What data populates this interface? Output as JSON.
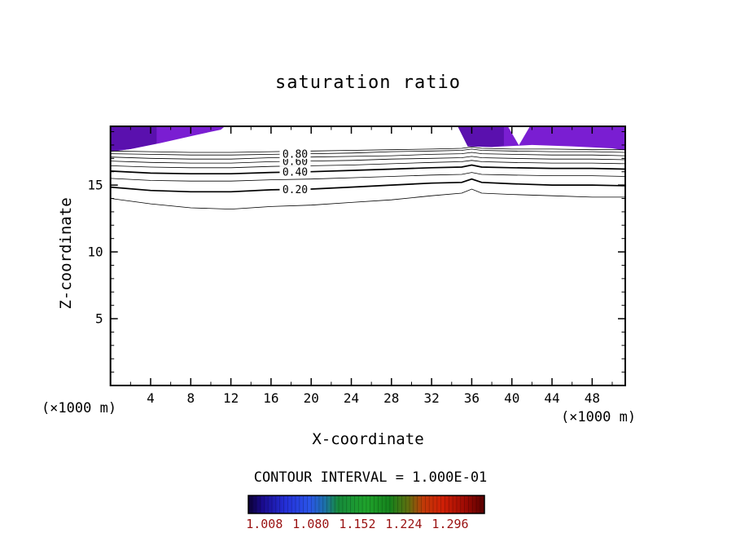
{
  "chart_data": {
    "type": "contour",
    "title": "saturation ratio",
    "xlabel": "X-coordinate",
    "ylabel": "Z-coordinate",
    "axis_unit": "(×1000 m)",
    "contour_interval_label": "CONTOUR INTERVAL = 1.000E-01",
    "axes": {
      "xlim": [
        0,
        51.3
      ],
      "ylim": [
        0,
        19.4
      ],
      "x_ticks_major": [
        4,
        8,
        12,
        16,
        20,
        24,
        28,
        32,
        36,
        40,
        44,
        48
      ],
      "x_tick_minor_step": 2,
      "y_ticks_major": [
        5,
        10,
        15
      ],
      "y_tick_minor_step": 1,
      "grid": false
    },
    "contours": {
      "interval": 0.1,
      "label_x": 18.4,
      "x_samples": [
        0,
        4,
        8,
        12,
        16,
        20,
        24,
        28,
        32,
        35,
        36,
        37,
        40,
        44,
        48,
        51.3
      ],
      "levels": [
        {
          "level": 0.1,
          "bold": false,
          "labeled": false,
          "z": [
            14.0,
            13.6,
            13.3,
            13.2,
            13.4,
            13.5,
            13.7,
            13.9,
            14.2,
            14.4,
            14.7,
            14.4,
            14.3,
            14.2,
            14.1,
            14.1
          ]
        },
        {
          "level": 0.2,
          "bold": true,
          "labeled": true,
          "z": [
            14.85,
            14.6,
            14.5,
            14.5,
            14.65,
            14.7,
            14.85,
            15.0,
            15.15,
            15.2,
            15.45,
            15.2,
            15.1,
            15.0,
            15.0,
            14.95
          ]
        },
        {
          "level": 0.3,
          "bold": false,
          "labeled": false,
          "z": [
            15.5,
            15.35,
            15.3,
            15.3,
            15.4,
            15.45,
            15.55,
            15.65,
            15.75,
            15.8,
            15.95,
            15.8,
            15.75,
            15.7,
            15.7,
            15.65
          ]
        },
        {
          "level": 0.4,
          "bold": true,
          "labeled": true,
          "z": [
            16.05,
            15.9,
            15.85,
            15.85,
            15.95,
            16.0,
            16.1,
            16.2,
            16.3,
            16.35,
            16.5,
            16.35,
            16.3,
            16.25,
            16.25,
            16.2
          ]
        },
        {
          "level": 0.5,
          "bold": false,
          "labeled": false,
          "z": [
            16.45,
            16.35,
            16.3,
            16.3,
            16.4,
            16.45,
            16.5,
            16.6,
            16.7,
            16.75,
            16.85,
            16.75,
            16.7,
            16.65,
            16.65,
            16.6
          ]
        },
        {
          "level": 0.6,
          "bold": false,
          "labeled": true,
          "z": [
            16.8,
            16.7,
            16.65,
            16.65,
            16.75,
            16.8,
            16.85,
            16.95,
            17.0,
            17.05,
            17.15,
            17.05,
            17.0,
            16.95,
            16.95,
            16.9
          ]
        },
        {
          "level": 0.7,
          "bold": false,
          "labeled": false,
          "z": [
            17.1,
            17.0,
            16.95,
            16.95,
            17.05,
            17.1,
            17.15,
            17.2,
            17.3,
            17.35,
            17.45,
            17.35,
            17.3,
            17.25,
            17.25,
            17.2
          ]
        },
        {
          "level": 0.8,
          "bold": false,
          "labeled": true,
          "z": [
            17.35,
            17.3,
            17.25,
            17.25,
            17.3,
            17.35,
            17.4,
            17.5,
            17.55,
            17.6,
            17.7,
            17.6,
            17.55,
            17.5,
            17.5,
            17.45
          ]
        },
        {
          "level": 0.9,
          "bold": false,
          "labeled": false,
          "z": [
            17.55,
            17.5,
            17.45,
            17.45,
            17.5,
            17.55,
            17.6,
            17.65,
            17.7,
            17.75,
            17.85,
            17.75,
            17.7,
            17.7,
            17.65,
            17.65
          ]
        }
      ]
    },
    "filled_regions": [
      {
        "name": "left-high-saturation-region",
        "color": "#7a1ed2",
        "polygon": [
          [
            0,
            19.4
          ],
          [
            11.4,
            19.4
          ],
          [
            11.0,
            19.15
          ],
          [
            8.5,
            18.75
          ],
          [
            5,
            18.15
          ],
          [
            2,
            17.7
          ],
          [
            0,
            17.5
          ]
        ]
      },
      {
        "name": "left-high-saturation-dark-region",
        "color": "#5a10ae",
        "polygon": [
          [
            0,
            19.4
          ],
          [
            4.6,
            19.4
          ],
          [
            4.6,
            18.1
          ],
          [
            2,
            17.7
          ],
          [
            0,
            17.5
          ]
        ]
      },
      {
        "name": "right-high-saturation-region",
        "color": "#7a1ed2",
        "polygon": [
          [
            34.6,
            19.4
          ],
          [
            35.6,
            17.9
          ],
          [
            38,
            17.85
          ],
          [
            42,
            18.0
          ],
          [
            46,
            17.9
          ],
          [
            50,
            17.75
          ],
          [
            51.3,
            17.6
          ],
          [
            51.3,
            19.4
          ]
        ]
      },
      {
        "name": "right-high-saturation-dark-region",
        "color": "#5a10ae",
        "polygon": [
          [
            34.6,
            19.4
          ],
          [
            35.6,
            17.9
          ],
          [
            38,
            17.85
          ],
          [
            39.2,
            17.95
          ],
          [
            39.2,
            19.4
          ]
        ]
      },
      {
        "name": "right-notch-white-region",
        "color": "#ffffff",
        "polygon": [
          [
            39.6,
            19.4
          ],
          [
            41.8,
            19.4
          ],
          [
            40.7,
            17.98
          ]
        ]
      }
    ],
    "colorbar": {
      "vmin": 0.983,
      "vmax": 1.349,
      "ticks": [
        1.008,
        1.08,
        1.152,
        1.224,
        1.296
      ],
      "tick_labels": [
        "1.008",
        "1.080",
        "1.152",
        "1.224",
        "1.296"
      ],
      "label_color": "#991111",
      "stops": [
        {
          "offset": 0.0,
          "color": "#0b0033"
        },
        {
          "offset": 0.06,
          "color": "#1a0b8f"
        },
        {
          "offset": 0.16,
          "color": "#2430d8"
        },
        {
          "offset": 0.26,
          "color": "#2a55e8"
        },
        {
          "offset": 0.32,
          "color": "#1d6fae"
        },
        {
          "offset": 0.38,
          "color": "#168a3c"
        },
        {
          "offset": 0.5,
          "color": "#1fa32b"
        },
        {
          "offset": 0.6,
          "color": "#15821c"
        },
        {
          "offset": 0.68,
          "color": "#636d0e"
        },
        {
          "offset": 0.74,
          "color": "#c03a08"
        },
        {
          "offset": 0.82,
          "color": "#d02006"
        },
        {
          "offset": 0.92,
          "color": "#9c0a03"
        },
        {
          "offset": 1.0,
          "color": "#570000"
        }
      ]
    }
  }
}
